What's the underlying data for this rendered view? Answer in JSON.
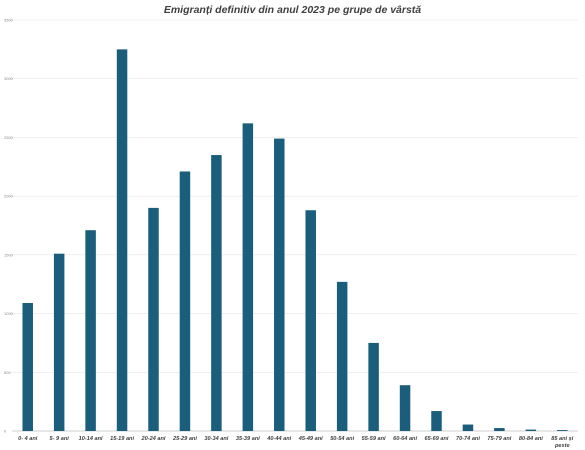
{
  "chart_data": {
    "type": "bar",
    "title": "Emigranți definitiv din anul 2023 pe grupe de vârstă",
    "xlabel": "",
    "ylabel": "",
    "categories": [
      "0- 4 ani",
      "5- 9 ani",
      "10-14 ani",
      "15-19 ani",
      "20-24 ani",
      "25-29 ani",
      "30-34 ani",
      "35-39 ani",
      "40-44 ani",
      "45-49 ani",
      "50-54 ani",
      "55-59 ani",
      "60-64 ani",
      "65-69 ani",
      "70-74 ani",
      "75-79 ani",
      "80-84 ani",
      "85 ani și peste"
    ],
    "values": [
      1090,
      1510,
      1710,
      3250,
      1900,
      2210,
      2350,
      2620,
      2490,
      1880,
      1270,
      750,
      390,
      170,
      55,
      25,
      12,
      8
    ],
    "ylim": [
      0,
      3500
    ],
    "yticks": [
      "0",
      "500",
      "1000",
      "1500",
      "2000",
      "2500",
      "3000",
      "3500"
    ],
    "grid": true,
    "legend": "none",
    "colors": {
      "bar": "#1b5e7b"
    }
  }
}
